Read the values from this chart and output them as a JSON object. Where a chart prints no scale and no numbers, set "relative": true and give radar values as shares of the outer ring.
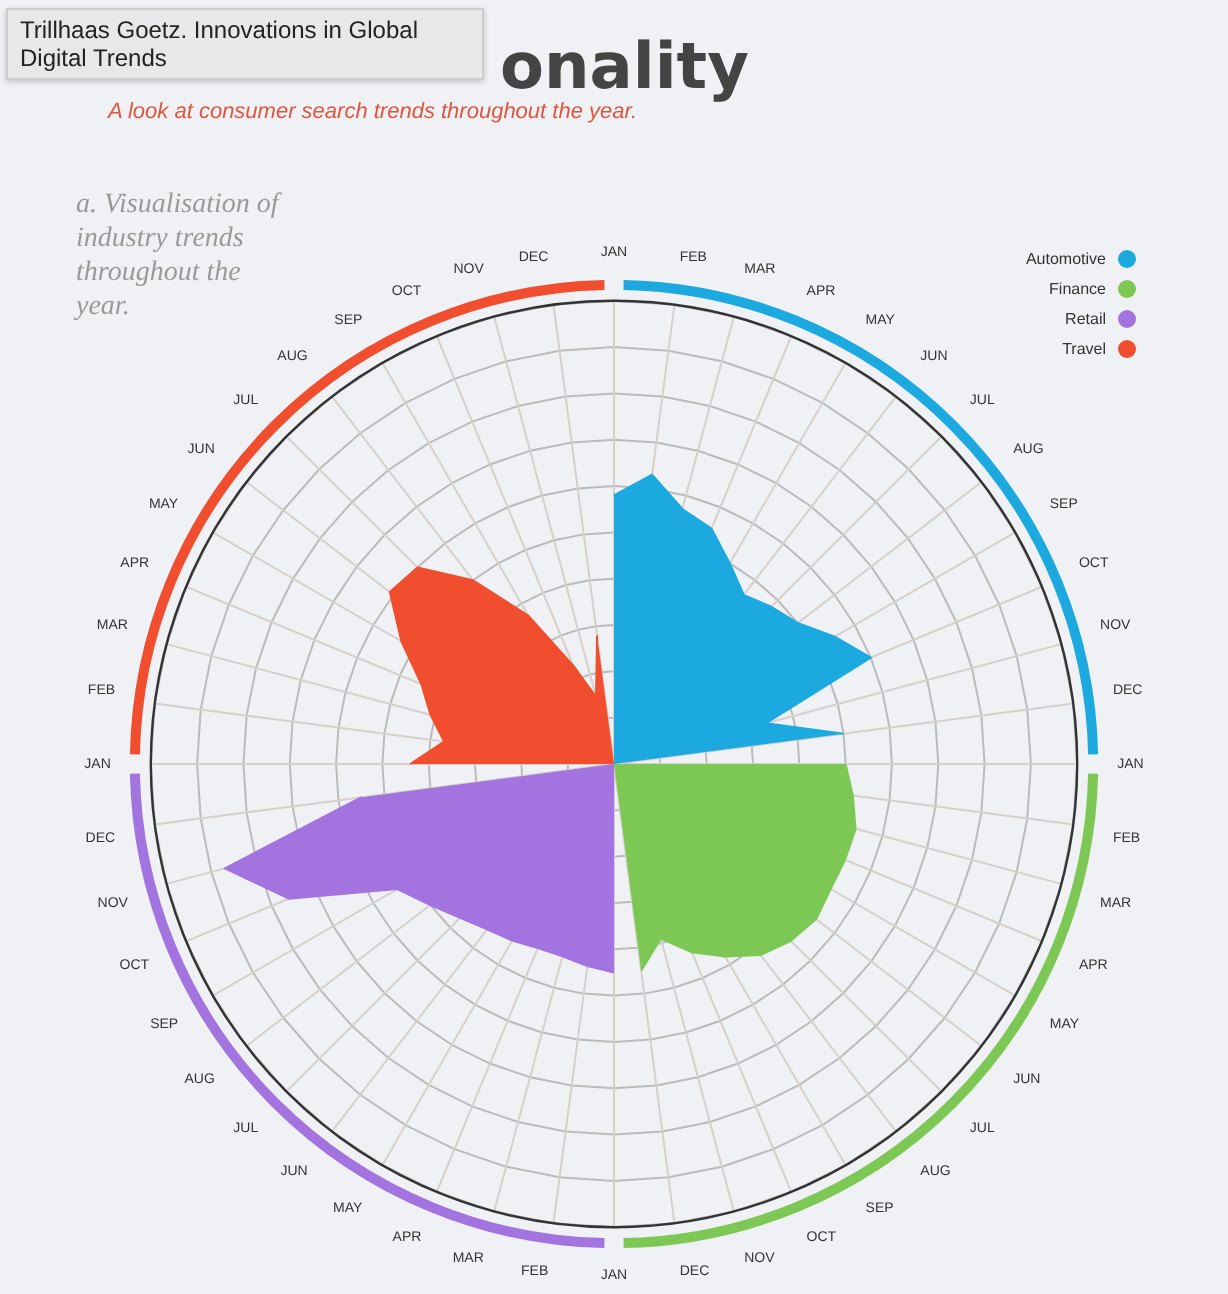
{
  "chart_data": {
    "type": "radar",
    "title": "onality",
    "subtitle": "A look at consumer search trends throughout the year.",
    "annotations": [
      "a. Visualisation of industry trends throughout the year.",
      "Trillhaas Goetz. Innovations in Global Digital Trends"
    ],
    "categories": [
      "JAN",
      "FEB",
      "MAR",
      "APR",
      "MAY",
      "JUN",
      "JUL",
      "AUG",
      "SEP",
      "OCT",
      "NOV",
      "DEC",
      "JAN",
      "FEB",
      "MAR",
      "APR",
      "MAY",
      "JUN",
      "JUL",
      "AUG",
      "SEP",
      "OCT",
      "NOV",
      "DEC",
      "JAN",
      "FEB",
      "MAR",
      "APR",
      "MAY",
      "JUN",
      "JUL",
      "AUG",
      "SEP",
      "OCT",
      "NOV",
      "DEC",
      "JAN",
      "FEB",
      "MAR",
      "APR",
      "MAY",
      "JUN",
      "JUL",
      "AUG",
      "SEP",
      "OCT",
      "NOV",
      "DEC"
    ],
    "relative": true,
    "grid": true,
    "legend": "top right",
    "series": [
      {
        "name": "Automotive",
        "color": "#1ba9e0",
        "values": [
          0.58,
          0.63,
          0.57,
          0.55,
          0.5,
          0.46,
          0.48,
          0.5,
          0.55,
          0.6,
          0.34,
          0.5,
          null,
          null,
          null,
          null,
          null,
          null,
          null,
          null,
          null,
          null,
          null,
          null,
          null,
          null,
          null,
          null,
          null,
          null,
          null,
          null,
          null,
          null,
          null,
          null,
          null,
          null,
          null,
          null,
          null,
          null,
          null,
          null,
          null,
          null,
          null,
          null
        ]
      },
      {
        "name": "Finance",
        "color": "#7dc855",
        "values": [
          null,
          null,
          null,
          null,
          null,
          null,
          null,
          null,
          null,
          null,
          null,
          null,
          0.5,
          0.52,
          0.54,
          0.54,
          0.54,
          0.55,
          0.54,
          0.52,
          0.48,
          0.44,
          0.39,
          0.45,
          null,
          null,
          null,
          null,
          null,
          null,
          null,
          null,
          null,
          null,
          null,
          null,
          null,
          null,
          null,
          null,
          null,
          null,
          null,
          null,
          null,
          null,
          null,
          null
        ]
      },
      {
        "name": "Retail",
        "color": "#a374e0",
        "values": [
          null,
          null,
          null,
          null,
          null,
          null,
          null,
          null,
          null,
          null,
          null,
          null,
          null,
          null,
          null,
          null,
          null,
          null,
          null,
          null,
          null,
          null,
          null,
          null,
          0.45,
          0.44,
          0.43,
          0.43,
          0.44,
          0.45,
          0.47,
          0.5,
          0.54,
          0.76,
          0.87,
          0.55,
          null,
          null,
          null,
          null,
          null,
          null,
          null,
          null,
          null,
          null,
          null,
          null
        ]
      },
      {
        "name": "Travel",
        "color": "#f04e2e",
        "values": [
          null,
          null,
          null,
          null,
          null,
          null,
          null,
          null,
          null,
          null,
          null,
          null,
          null,
          null,
          null,
          null,
          null,
          null,
          null,
          null,
          null,
          null,
          null,
          null,
          null,
          null,
          null,
          null,
          null,
          null,
          null,
          null,
          null,
          null,
          null,
          null,
          0.44,
          0.37,
          0.41,
          0.45,
          0.53,
          0.61,
          0.6,
          0.5,
          0.37,
          0.23,
          0.15,
          0.28
        ]
      }
    ]
  }
}
